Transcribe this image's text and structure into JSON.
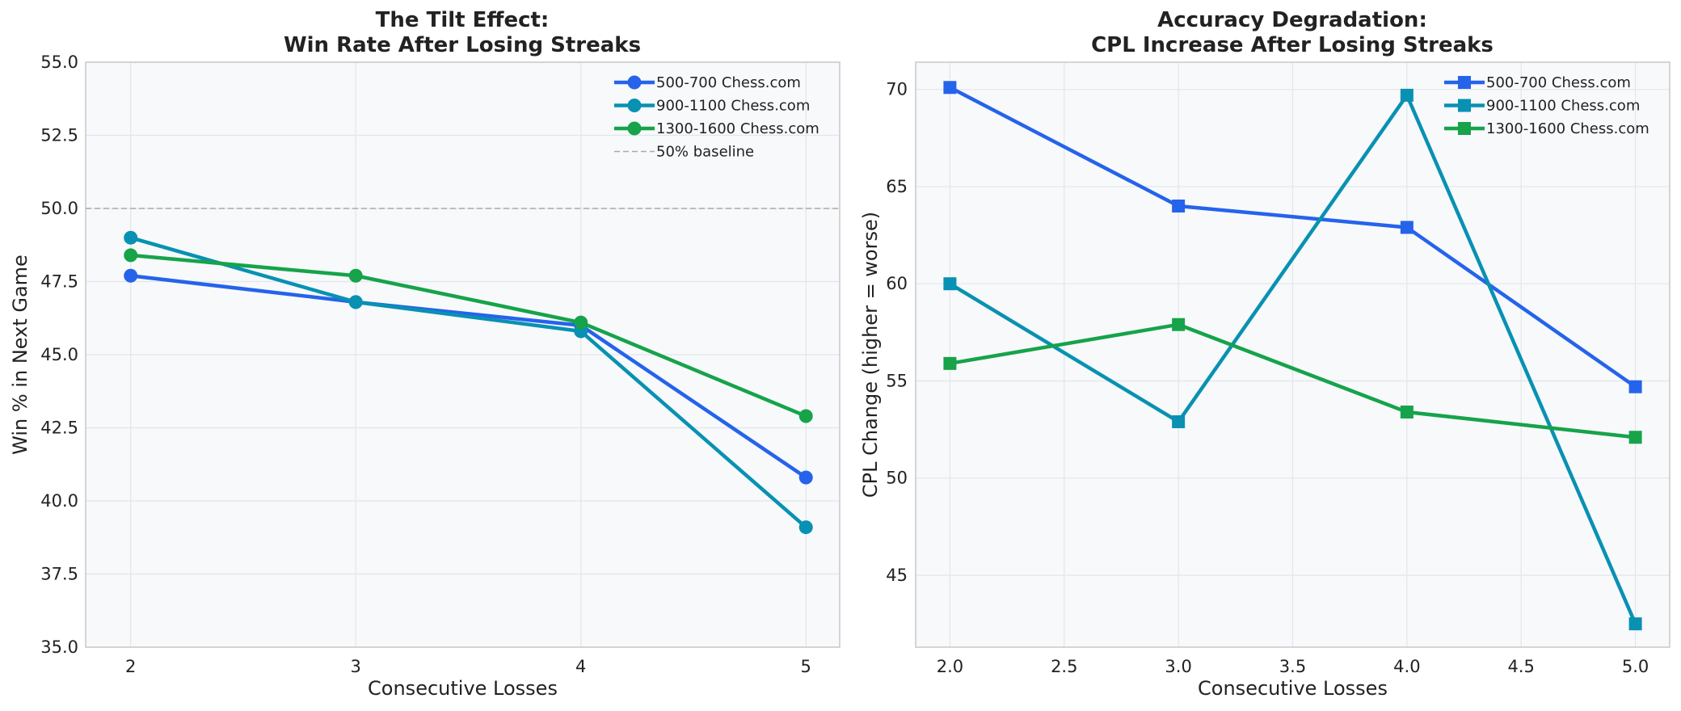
{
  "chart_data": [
    {
      "type": "line",
      "title": "The Tilt Effect:",
      "subtitle": "Win Rate After Losing Streaks",
      "xlabel": "Consecutive Losses",
      "ylabel": "Win % in Next Game",
      "xlim": [
        1.8,
        5.15
      ],
      "ylim": [
        35.0,
        55.0
      ],
      "xticks": [
        2,
        3,
        4,
        5
      ],
      "xtick_labels": [
        "2",
        "3",
        "4",
        "5"
      ],
      "yticks": [
        35.0,
        37.5,
        40.0,
        42.5,
        45.0,
        47.5,
        50.0,
        52.5,
        55.0
      ],
      "ytick_labels": [
        "35.0",
        "37.5",
        "40.0",
        "42.5",
        "45.0",
        "47.5",
        "50.0",
        "52.5",
        "55.0"
      ],
      "marker": "circle",
      "grid": true,
      "legend_position": "top-right",
      "x": [
        2,
        3,
        4,
        5
      ],
      "series": [
        {
          "name": "500-700 Chess.com",
          "color": "#2563eb",
          "values": [
            47.7,
            46.8,
            46.0,
            40.8
          ]
        },
        {
          "name": "900-1100 Chess.com",
          "color": "#0891b2",
          "values": [
            49.0,
            46.8,
            45.8,
            39.1
          ]
        },
        {
          "name": "1300-1600 Chess.com",
          "color": "#16a34a",
          "values": [
            48.4,
            47.7,
            46.1,
            42.9
          ]
        }
      ],
      "baseline": {
        "name": "50% baseline",
        "value": 50.0,
        "color": "#aaaaaa"
      }
    },
    {
      "type": "line",
      "title": "Accuracy Degradation:",
      "subtitle": "CPL Increase After Losing Streaks",
      "xlabel": "Consecutive Losses",
      "ylabel": "CPL Change (higher = worse)",
      "xlim": [
        1.85,
        5.15
      ],
      "ylim": [
        41.3,
        71.4
      ],
      "xticks": [
        2.0,
        2.5,
        3.0,
        3.5,
        4.0,
        4.5,
        5.0
      ],
      "xtick_labels": [
        "2.0",
        "2.5",
        "3.0",
        "3.5",
        "4.0",
        "4.5",
        "5.0"
      ],
      "yticks": [
        45,
        50,
        55,
        60,
        65,
        70
      ],
      "ytick_labels": [
        "45",
        "50",
        "55",
        "60",
        "65",
        "70"
      ],
      "marker": "square",
      "grid": true,
      "legend_position": "top-right",
      "x": [
        2,
        3,
        4,
        5
      ],
      "series": [
        {
          "name": "500-700 Chess.com",
          "color": "#2563eb",
          "values": [
            70.1,
            64.0,
            62.9,
            54.7
          ]
        },
        {
          "name": "900-1100 Chess.com",
          "color": "#0891b2",
          "values": [
            60.0,
            52.9,
            69.7,
            42.5
          ]
        },
        {
          "name": "1300-1600 Chess.com",
          "color": "#16a34a",
          "values": [
            55.9,
            57.9,
            53.4,
            52.1
          ]
        }
      ]
    }
  ]
}
